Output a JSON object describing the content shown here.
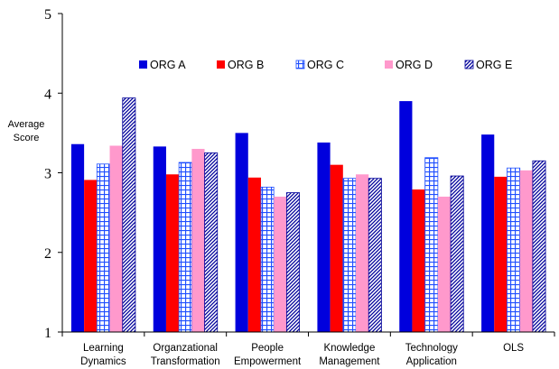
{
  "chart_data": {
    "type": "bar",
    "title": "",
    "ylabel": [
      "Average",
      "Score"
    ],
    "xlabel": "",
    "ylim": [
      1,
      5
    ],
    "yticks": [
      1,
      2,
      3,
      4,
      5
    ],
    "grid": false,
    "legend_position": "top",
    "categories": [
      [
        "Learning",
        "Dynamics"
      ],
      [
        "Organzational",
        "Transformation"
      ],
      [
        "People",
        "Empowerment"
      ],
      [
        "Knowledge",
        "Management"
      ],
      [
        "Technology",
        "Application"
      ],
      [
        "OLS"
      ]
    ],
    "series": [
      {
        "name": "ORG A",
        "color": "#0000dd",
        "pattern": "solid",
        "values": [
          3.36,
          3.33,
          3.5,
          3.38,
          3.9,
          3.48
        ]
      },
      {
        "name": "ORG B",
        "color": "#ff0000",
        "pattern": "solid",
        "values": [
          2.91,
          2.98,
          2.94,
          3.1,
          2.79,
          2.95
        ]
      },
      {
        "name": "ORG C",
        "color": "#0044ff",
        "pattern": "grid",
        "values": [
          3.11,
          3.13,
          2.82,
          2.93,
          3.19,
          3.06
        ]
      },
      {
        "name": "ORG D",
        "color": "#ff99cc",
        "pattern": "solid",
        "values": [
          3.34,
          3.3,
          2.7,
          2.98,
          2.7,
          3.03
        ]
      },
      {
        "name": "ORG E",
        "color": "#0000aa",
        "pattern": "hatch",
        "values": [
          3.94,
          3.25,
          2.75,
          2.93,
          2.96,
          3.15
        ]
      }
    ]
  }
}
